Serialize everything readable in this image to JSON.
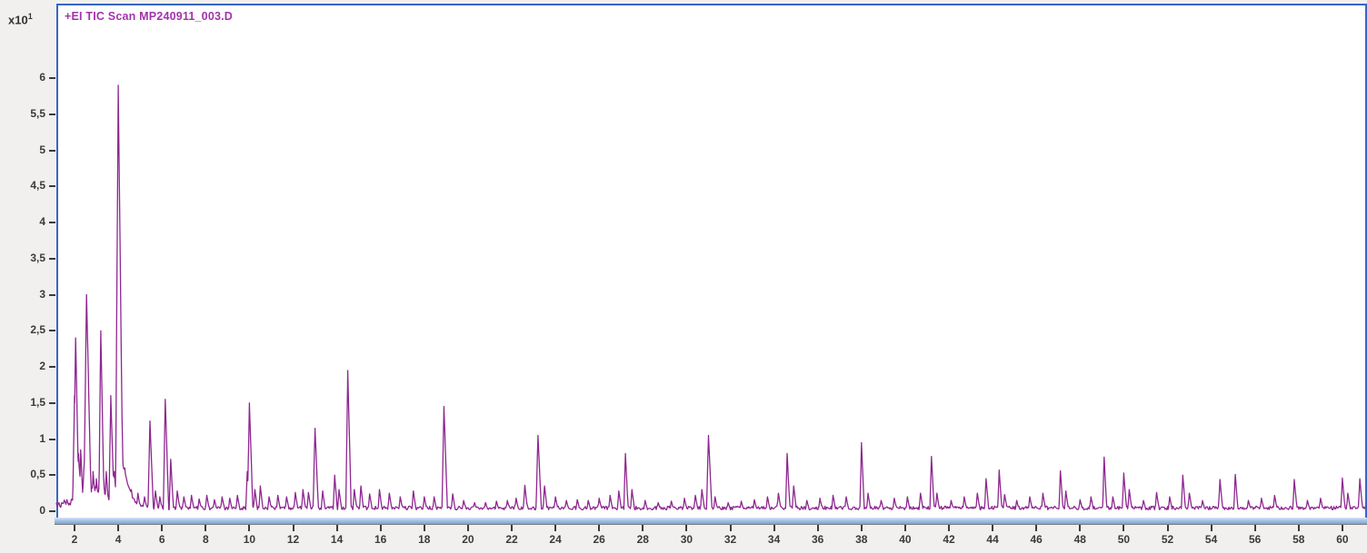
{
  "window": {
    "background_color": "#f1f0ee",
    "plot_background_color": "#ffffff",
    "frame_color": "#3865c6",
    "trace_color": "#8e2790",
    "title_color": "#a233ab",
    "tick_color": "#3c3c3c"
  },
  "plot": {
    "title": "+EI TIC Scan MP240911_003.D",
    "exponent_label": "x10",
    "exponent_power": "1"
  },
  "chart_data": {
    "type": "line",
    "title": "+EI TIC Scan MP240911_003.D",
    "series_name": "TIC",
    "xlabel": "",
    "ylabel": "",
    "y_scale_label": "x10",
    "y_scale_exponent": "1",
    "grid": false,
    "legend_position": "none",
    "xlim": [
      1.17,
      61.05
    ],
    "ylim": [
      0,
      7.0
    ],
    "x_ticks": [
      2,
      4,
      6,
      8,
      10,
      12,
      14,
      16,
      18,
      20,
      22,
      24,
      26,
      28,
      30,
      32,
      34,
      36,
      38,
      40,
      42,
      44,
      46,
      48,
      50,
      52,
      54,
      56,
      58,
      60
    ],
    "y_ticks": [
      {
        "value": 0,
        "label": "0"
      },
      {
        "value": 0.5,
        "label": "0,5"
      },
      {
        "value": 1,
        "label": "1"
      },
      {
        "value": 1.5,
        "label": "1,5"
      },
      {
        "value": 2,
        "label": "2"
      },
      {
        "value": 2.5,
        "label": "2,5"
      },
      {
        "value": 3,
        "label": "3"
      },
      {
        "value": 3.5,
        "label": "3,5"
      },
      {
        "value": 4,
        "label": "4"
      },
      {
        "value": 4.5,
        "label": "4,5"
      },
      {
        "value": 5,
        "label": "5"
      },
      {
        "value": 5.5,
        "label": "5,5"
      },
      {
        "value": 6,
        "label": "6"
      }
    ],
    "peaks": [
      [
        1.75,
        0.1
      ],
      [
        2.0,
        1.6
      ],
      [
        2.05,
        2.4
      ],
      [
        2.18,
        0.8
      ],
      [
        2.28,
        0.85
      ],
      [
        2.42,
        0.55
      ],
      [
        2.55,
        3.0
      ],
      [
        2.7,
        0.5
      ],
      [
        2.85,
        0.55
      ],
      [
        3.0,
        0.45
      ],
      [
        3.2,
        2.5
      ],
      [
        3.45,
        0.55
      ],
      [
        3.66,
        1.6
      ],
      [
        3.82,
        0.55
      ],
      [
        4.0,
        5.9
      ],
      [
        4.3,
        0.6
      ],
      [
        4.6,
        0.3
      ],
      [
        4.9,
        0.25
      ],
      [
        5.2,
        0.2
      ],
      [
        5.45,
        1.25
      ],
      [
        5.7,
        0.28
      ],
      [
        5.9,
        0.2
      ],
      [
        6.15,
        1.55
      ],
      [
        6.4,
        0.72
      ],
      [
        6.7,
        0.28
      ],
      [
        7.0,
        0.2
      ],
      [
        7.35,
        0.22
      ],
      [
        7.7,
        0.17
      ],
      [
        8.05,
        0.22
      ],
      [
        8.4,
        0.16
      ],
      [
        8.75,
        0.2
      ],
      [
        9.1,
        0.18
      ],
      [
        9.45,
        0.22
      ],
      [
        9.9,
        0.55
      ],
      [
        10.0,
        1.5
      ],
      [
        10.25,
        0.3
      ],
      [
        10.5,
        0.35
      ],
      [
        10.9,
        0.2
      ],
      [
        11.3,
        0.22
      ],
      [
        11.7,
        0.2
      ],
      [
        12.1,
        0.26
      ],
      [
        12.45,
        0.3
      ],
      [
        12.7,
        0.26
      ],
      [
        13.0,
        1.15
      ],
      [
        13.35,
        0.28
      ],
      [
        13.9,
        0.5
      ],
      [
        14.1,
        0.3
      ],
      [
        14.5,
        1.95
      ],
      [
        14.8,
        0.3
      ],
      [
        15.1,
        0.35
      ],
      [
        15.5,
        0.24
      ],
      [
        15.95,
        0.3
      ],
      [
        16.4,
        0.25
      ],
      [
        16.9,
        0.2
      ],
      [
        17.5,
        0.28
      ],
      [
        18.0,
        0.2
      ],
      [
        18.45,
        0.2
      ],
      [
        18.9,
        1.45
      ],
      [
        19.3,
        0.24
      ],
      [
        19.8,
        0.15
      ],
      [
        20.3,
        0.12
      ],
      [
        20.8,
        0.12
      ],
      [
        21.3,
        0.14
      ],
      [
        21.8,
        0.15
      ],
      [
        22.2,
        0.18
      ],
      [
        22.6,
        0.36
      ],
      [
        23.2,
        1.05
      ],
      [
        23.5,
        0.35
      ],
      [
        24.0,
        0.2
      ],
      [
        24.5,
        0.15
      ],
      [
        25.0,
        0.16
      ],
      [
        25.5,
        0.15
      ],
      [
        26.0,
        0.18
      ],
      [
        26.5,
        0.22
      ],
      [
        26.9,
        0.28
      ],
      [
        27.2,
        0.8
      ],
      [
        27.5,
        0.3
      ],
      [
        28.1,
        0.15
      ],
      [
        28.7,
        0.12
      ],
      [
        29.3,
        0.14
      ],
      [
        29.9,
        0.18
      ],
      [
        30.4,
        0.22
      ],
      [
        30.7,
        0.3
      ],
      [
        31.0,
        1.05
      ],
      [
        31.3,
        0.2
      ],
      [
        31.9,
        0.12
      ],
      [
        32.5,
        0.14
      ],
      [
        33.1,
        0.16
      ],
      [
        33.7,
        0.2
      ],
      [
        34.2,
        0.25
      ],
      [
        34.6,
        0.8
      ],
      [
        34.9,
        0.35
      ],
      [
        35.5,
        0.15
      ],
      [
        36.1,
        0.18
      ],
      [
        36.7,
        0.22
      ],
      [
        37.3,
        0.2
      ],
      [
        38.0,
        0.95
      ],
      [
        38.3,
        0.25
      ],
      [
        38.9,
        0.15
      ],
      [
        39.5,
        0.18
      ],
      [
        40.1,
        0.2
      ],
      [
        40.7,
        0.25
      ],
      [
        41.2,
        0.76
      ],
      [
        41.45,
        0.25
      ],
      [
        42.1,
        0.15
      ],
      [
        42.7,
        0.2
      ],
      [
        43.3,
        0.25
      ],
      [
        43.7,
        0.45
      ],
      [
        44.3,
        0.57
      ],
      [
        44.55,
        0.23
      ],
      [
        45.1,
        0.15
      ],
      [
        45.7,
        0.2
      ],
      [
        46.3,
        0.25
      ],
      [
        47.1,
        0.56
      ],
      [
        47.35,
        0.28
      ],
      [
        48.0,
        0.16
      ],
      [
        48.5,
        0.2
      ],
      [
        49.1,
        0.75
      ],
      [
        49.5,
        0.2
      ],
      [
        50.0,
        0.53
      ],
      [
        50.25,
        0.3
      ],
      [
        50.9,
        0.15
      ],
      [
        51.5,
        0.26
      ],
      [
        52.1,
        0.2
      ],
      [
        52.7,
        0.5
      ],
      [
        53.0,
        0.25
      ],
      [
        53.6,
        0.15
      ],
      [
        54.4,
        0.44
      ],
      [
        55.1,
        0.51
      ],
      [
        55.7,
        0.15
      ],
      [
        56.3,
        0.18
      ],
      [
        56.9,
        0.22
      ],
      [
        57.8,
        0.44
      ],
      [
        58.4,
        0.15
      ],
      [
        59.0,
        0.18
      ],
      [
        60.0,
        0.46
      ],
      [
        60.25,
        0.25
      ],
      [
        60.8,
        0.45
      ]
    ],
    "baseline": {
      "noise_level": 0.05,
      "early_cluster_hump": {
        "center": 2.9,
        "sigma": 0.85,
        "height": 0.2
      },
      "main_peak_tail": {
        "start": 4.02,
        "height": 0.95,
        "decay": 0.33
      }
    }
  }
}
